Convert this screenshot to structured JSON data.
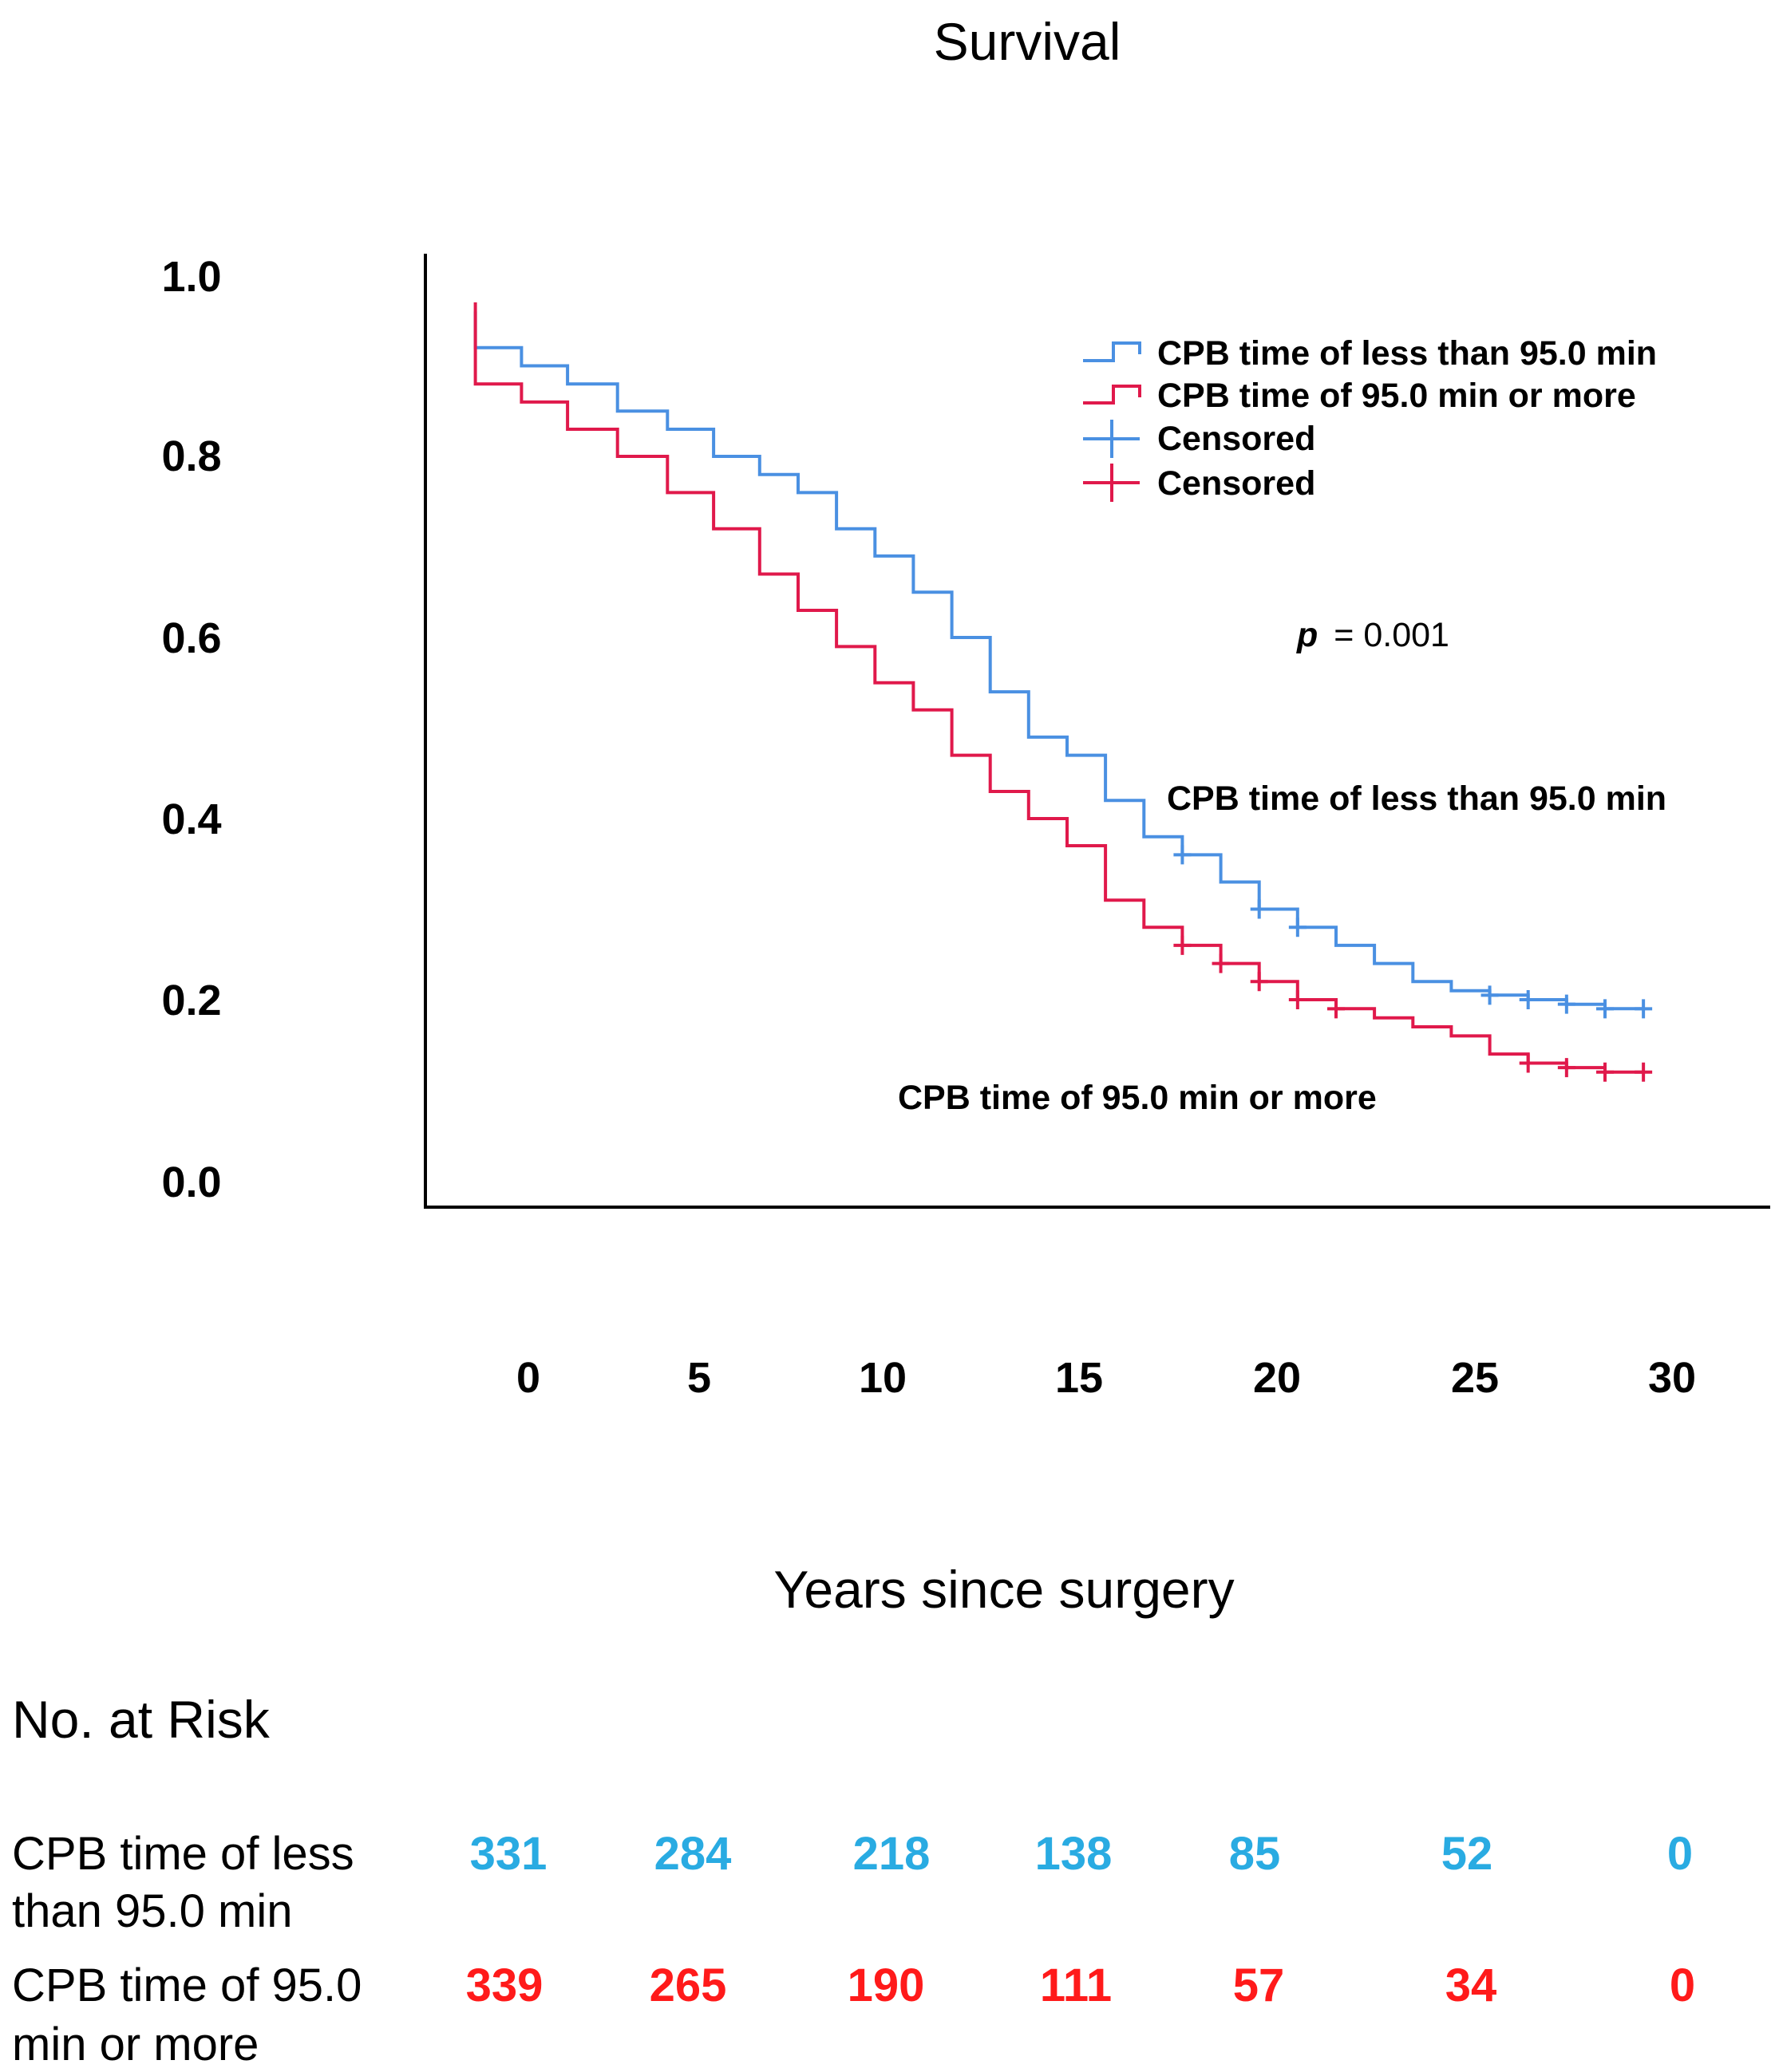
{
  "chart_data": {
    "type": "line",
    "title": "Survival",
    "xlabel": "Years since surgery",
    "ylabel": "",
    "xlim": [
      -2.5,
      32.5
    ],
    "ylim": [
      0,
      1.0
    ],
    "x_ticks": [
      "0",
      "5",
      "10",
      "15",
      "20",
      "25",
      "30"
    ],
    "y_ticks": [
      "0.0",
      "0.2",
      "0.4",
      "0.6",
      "0.8",
      "1.0"
    ],
    "legend": {
      "position": "top-right",
      "entries": [
        {
          "label": "CPB time of less than 95.0 min",
          "kind": "step",
          "color": "#4a90e2"
        },
        {
          "label": "CPB time of 95.0 min or more",
          "kind": "step",
          "color": "#e0194b"
        },
        {
          "label": "Censored",
          "kind": "censor",
          "color": "#4a90e2"
        },
        {
          "label": "Censored",
          "kind": "censor",
          "color": "#e0194b"
        }
      ]
    },
    "annotations": {
      "p_symbol": "p",
      "p_value": "= 0.001",
      "series_label_1": "CPB time of less than 95.0 min",
      "series_label_2": "CPB time of 95.0 min or more"
    },
    "series": [
      {
        "name": "CPB time of less than 95.0 min",
        "color": "#4a90e2",
        "start_x": -1.2,
        "start_y": 0.96,
        "steps": [
          [
            -1.2,
            0.92
          ],
          [
            0,
            0.9
          ],
          [
            1.2,
            0.88
          ],
          [
            2.5,
            0.85
          ],
          [
            3.8,
            0.83
          ],
          [
            5,
            0.8
          ],
          [
            6.2,
            0.78
          ],
          [
            7.2,
            0.76
          ],
          [
            8.2,
            0.72
          ],
          [
            9.2,
            0.69
          ],
          [
            10.2,
            0.65
          ],
          [
            11.2,
            0.6
          ],
          [
            12.2,
            0.54
          ],
          [
            13.2,
            0.49
          ],
          [
            14.2,
            0.47
          ],
          [
            15.2,
            0.42
          ],
          [
            16.2,
            0.38
          ],
          [
            17.2,
            0.36
          ],
          [
            18.2,
            0.33
          ],
          [
            19.2,
            0.3
          ],
          [
            20.2,
            0.28
          ],
          [
            21.2,
            0.26
          ],
          [
            22.2,
            0.24
          ],
          [
            23.2,
            0.22
          ],
          [
            24.2,
            0.21
          ],
          [
            25.2,
            0.205
          ],
          [
            26.2,
            0.2
          ],
          [
            27.2,
            0.195
          ],
          [
            28.2,
            0.19
          ],
          [
            29.2,
            0.19
          ]
        ],
        "censor_x": [
          17.2,
          19.2,
          20.2,
          25.2,
          26.2,
          27.2,
          28.2,
          29.2
        ]
      },
      {
        "name": "CPB time of 95.0 min or more",
        "color": "#e0194b",
        "start_x": -1.2,
        "start_y": 0.97,
        "steps": [
          [
            -1.2,
            0.88
          ],
          [
            0,
            0.86
          ],
          [
            1.2,
            0.83
          ],
          [
            2.5,
            0.8
          ],
          [
            3.8,
            0.76
          ],
          [
            5,
            0.72
          ],
          [
            6.2,
            0.67
          ],
          [
            7.2,
            0.63
          ],
          [
            8.2,
            0.59
          ],
          [
            9.2,
            0.55
          ],
          [
            10.2,
            0.52
          ],
          [
            11.2,
            0.47
          ],
          [
            12.2,
            0.43
          ],
          [
            13.2,
            0.4
          ],
          [
            14.2,
            0.37
          ],
          [
            15.2,
            0.31
          ],
          [
            16.2,
            0.28
          ],
          [
            17.2,
            0.26
          ],
          [
            18.2,
            0.24
          ],
          [
            19.2,
            0.22
          ],
          [
            20.2,
            0.2
          ],
          [
            21.2,
            0.19
          ],
          [
            22.2,
            0.18
          ],
          [
            23.2,
            0.17
          ],
          [
            24.2,
            0.16
          ],
          [
            25.2,
            0.14
          ],
          [
            26.2,
            0.13
          ],
          [
            27.2,
            0.125
          ],
          [
            28.2,
            0.12
          ],
          [
            29.2,
            0.12
          ]
        ],
        "censor_x": [
          17.2,
          18.2,
          19.2,
          20.2,
          21.2,
          26.2,
          27.2,
          28.2,
          29.2
        ]
      }
    ]
  },
  "risk_table": {
    "title": "No. at Risk",
    "rows": [
      {
        "label_line1": "CPB time of less",
        "label_line2": "than 95.0 min",
        "color": "#29abe2",
        "values": [
          "331",
          "284",
          "218",
          "138",
          "85",
          "52",
          "0"
        ]
      },
      {
        "label_line1": "CPB time of 95.0",
        "label_line2": "min or more",
        "color": "#ff1a1a",
        "values": [
          "339",
          "265",
          "190",
          "111",
          "57",
          "34",
          "0"
        ]
      }
    ]
  }
}
